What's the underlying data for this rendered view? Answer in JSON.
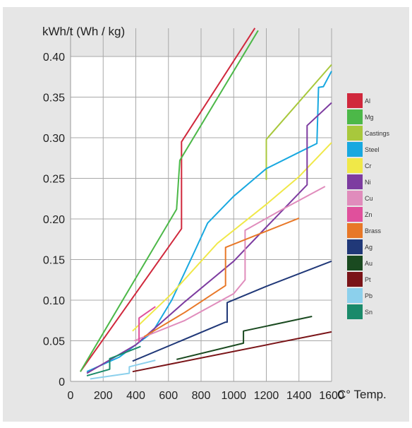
{
  "chart_data": {
    "type": "line",
    "title": "",
    "ylabel": "kWh/t (Wh / kg)",
    "xlabel": "C° Temp.",
    "xlim": [
      0,
      1600
    ],
    "ylim": [
      0,
      0.4
    ],
    "x_ticks": [
      "0",
      "200",
      "400",
      "600",
      "800",
      "1000",
      "1200",
      "1400",
      "1600"
    ],
    "y_ticks": [
      "0",
      "0.05",
      "0.10",
      "0.15",
      "0.20",
      "0.25",
      "0.30",
      "0.35",
      "0.40"
    ],
    "grid": true,
    "legend_position": "right",
    "series": [
      {
        "name": "Al",
        "color": "#d0283c",
        "points": [
          [
            60,
            0.012
          ],
          [
            680,
            0.188
          ],
          [
            680,
            0.295
          ],
          [
            1130,
            0.435
          ]
        ]
      },
      {
        "name": "Mg",
        "color": "#4cb848",
        "points": [
          [
            60,
            0.012
          ],
          [
            650,
            0.212
          ],
          [
            670,
            0.272
          ],
          [
            1150,
            0.432
          ]
        ]
      },
      {
        "name": "Castings",
        "color": "#a8c83c",
        "points": [
          [
            1200,
            0.248
          ],
          [
            1200,
            0.298
          ],
          [
            1600,
            0.39
          ]
        ]
      },
      {
        "name": "Steel",
        "color": "#18a8e0",
        "points": [
          [
            100,
            0.012
          ],
          [
            300,
            0.03
          ],
          [
            500,
            0.06
          ],
          [
            620,
            0.1
          ],
          [
            760,
            0.16
          ],
          [
            840,
            0.195
          ],
          [
            1000,
            0.228
          ],
          [
            1200,
            0.262
          ],
          [
            1400,
            0.282
          ],
          [
            1510,
            0.293
          ],
          [
            1520,
            0.362
          ],
          [
            1550,
            0.363
          ],
          [
            1600,
            0.382
          ]
        ]
      },
      {
        "name": "Cr",
        "color": "#f0e848",
        "points": [
          [
            380,
            0.062
          ],
          [
            620,
            0.108
          ],
          [
            900,
            0.17
          ],
          [
            1200,
            0.218
          ],
          [
            1400,
            0.252
          ],
          [
            1600,
            0.294
          ]
        ]
      },
      {
        "name": "Ni",
        "color": "#7d3ca0",
        "points": [
          [
            100,
            0.01
          ],
          [
            400,
            0.045
          ],
          [
            700,
            0.098
          ],
          [
            1000,
            0.148
          ],
          [
            1200,
            0.19
          ],
          [
            1450,
            0.242
          ],
          [
            1450,
            0.315
          ],
          [
            1600,
            0.343
          ]
        ]
      },
      {
        "name": "Cu",
        "color": "#e08cbc",
        "points": [
          [
            390,
            0.05
          ],
          [
            700,
            0.075
          ],
          [
            1000,
            0.108
          ],
          [
            1070,
            0.125
          ],
          [
            1070,
            0.186
          ],
          [
            1300,
            0.212
          ],
          [
            1560,
            0.24
          ]
        ]
      },
      {
        "name": "Zn",
        "color": "#e0509c",
        "points": [
          [
            420,
            0.048
          ],
          [
            420,
            0.078
          ],
          [
            520,
            0.092
          ]
        ]
      },
      {
        "name": "Brass",
        "color": "#e87828",
        "points": [
          [
            450,
            0.055
          ],
          [
            700,
            0.085
          ],
          [
            950,
            0.118
          ],
          [
            950,
            0.165
          ],
          [
            1200,
            0.185
          ],
          [
            1400,
            0.201
          ]
        ]
      },
      {
        "name": "Ag",
        "color": "#203878",
        "points": [
          [
            380,
            0.025
          ],
          [
            950,
            0.073
          ],
          [
            960,
            0.073
          ],
          [
            960,
            0.097
          ],
          [
            1200,
            0.117
          ],
          [
            1600,
            0.148
          ]
        ]
      },
      {
        "name": "Au",
        "color": "#1a4a20",
        "points": [
          [
            650,
            0.027
          ],
          [
            1060,
            0.047
          ],
          [
            1060,
            0.062
          ],
          [
            1480,
            0.08
          ]
        ]
      },
      {
        "name": "Pt",
        "color": "#7a1418",
        "points": [
          [
            380,
            0.012
          ],
          [
            1600,
            0.061
          ]
        ]
      },
      {
        "name": "Pb",
        "color": "#8cd0ec",
        "points": [
          [
            120,
            0.003
          ],
          [
            360,
            0.01
          ],
          [
            360,
            0.018
          ],
          [
            520,
            0.026
          ]
        ]
      },
      {
        "name": "Sn",
        "color": "#1a8a6a",
        "points": [
          [
            100,
            0.007
          ],
          [
            240,
            0.015
          ],
          [
            240,
            0.028
          ],
          [
            430,
            0.043
          ]
        ]
      }
    ]
  }
}
